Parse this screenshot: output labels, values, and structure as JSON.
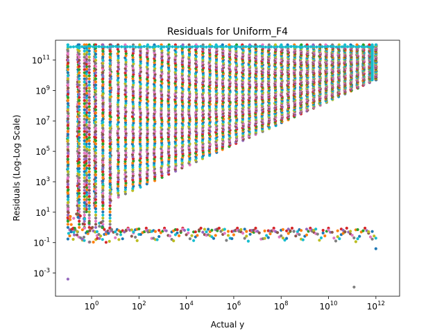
{
  "chart_data": {
    "type": "scatter",
    "title": "Residuals for Uniform_F4",
    "xlabel": "Actual y",
    "ylabel": "Residuals (Log-Log Scale)",
    "xscale": "log",
    "yscale": "log",
    "xlim": [
      0.03,
      10000000000000.0
    ],
    "ylim": [
      3e-05,
      2000000000000.0
    ],
    "grid": false,
    "legend": "none",
    "x_ticks": [
      {
        "base": "10",
        "exp": "0",
        "value": 1
      },
      {
        "base": "10",
        "exp": "2",
        "value": 100
      },
      {
        "base": "10",
        "exp": "4",
        "value": 10000
      },
      {
        "base": "10",
        "exp": "6",
        "value": 1000000
      },
      {
        "base": "10",
        "exp": "8",
        "value": 100000000
      },
      {
        "base": "10",
        "exp": "10",
        "value": 10000000000
      },
      {
        "base": "10",
        "exp": "12",
        "value": 1000000000000
      }
    ],
    "y_ticks": [
      {
        "base": "10",
        "exp": "-3",
        "value": 0.001
      },
      {
        "base": "10",
        "exp": "-1",
        "value": 0.1
      },
      {
        "base": "10",
        "exp": "1",
        "value": 10
      },
      {
        "base": "10",
        "exp": "3",
        "value": 1000
      },
      {
        "base": "10",
        "exp": "5",
        "value": 100000
      },
      {
        "base": "10",
        "exp": "7",
        "value": 10000000
      },
      {
        "base": "10",
        "exp": "9",
        "value": 1000000000
      },
      {
        "base": "10",
        "exp": "11",
        "value": 100000000000
      }
    ],
    "series_colors": [
      "#1f77b4",
      "#ff7f0e",
      "#2ca02c",
      "#d62728",
      "#9467bd",
      "#8c564b",
      "#e377c2",
      "#7f7f7f",
      "#bcbd22",
      "#17becf"
    ],
    "data_regions": {
      "upper_band": {
        "x_range": [
          0.1,
          1000000000000.0
        ],
        "y_lower_at_x_min": 3,
        "y_lower_at_x_max": 5000000000.0,
        "y_max": 1000000000000.0
      },
      "lower_band": {
        "x_range": [
          0.1,
          1000000000000.0
        ],
        "y_range": [
          0.0005,
          1
        ]
      },
      "isolated_points": [
        {
          "x": 0.1,
          "y": 0.0004
        },
        {
          "x": 120000000000.0,
          "y": 0.00012
        },
        {
          "x": 1000000000000.0,
          "y": 0.04
        }
      ]
    }
  }
}
